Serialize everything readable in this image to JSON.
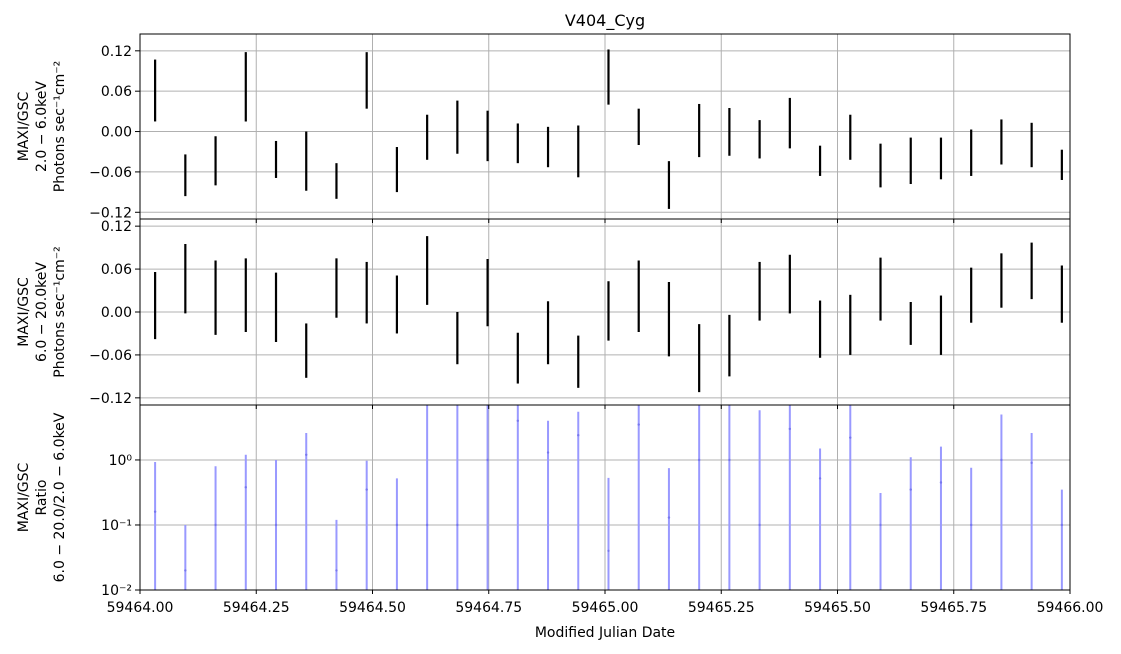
{
  "chart_data": {
    "type": "scatter",
    "title": "V404_Cyg",
    "xlabel": "Modified Julian Date",
    "xlim": [
      59464.0,
      59466.0
    ],
    "x_ticks": [
      "59464.00",
      "59464.25",
      "59464.50",
      "59464.75",
      "59465.00",
      "59465.25",
      "59465.50",
      "59465.75",
      "59466.00"
    ],
    "grid": true,
    "panels": [
      {
        "id": "soft",
        "ylabel_lines": [
          "MAXI/GSC",
          "2.0 − 6.0keV",
          "Photons sec⁻¹cm⁻²"
        ],
        "ylim": [
          -0.13,
          0.145
        ],
        "yscale": "linear",
        "y_ticks": [
          {
            "value": 0.12,
            "label": "0.12"
          },
          {
            "value": 0.06,
            "label": "0.06"
          },
          {
            "value": 0.0,
            "label": "0.00"
          },
          {
            "value": -0.06,
            "label": "−0.06"
          },
          {
            "value": -0.12,
            "label": "−0.12"
          }
        ],
        "color": "#000000",
        "points": [
          {
            "x": 59464.0325,
            "low": 0.015,
            "high": 0.107
          },
          {
            "x": 59464.0975,
            "low": -0.096,
            "high": -0.034
          },
          {
            "x": 59464.1625,
            "low": -0.08,
            "high": -0.007
          },
          {
            "x": 59464.2275,
            "low": 0.015,
            "high": 0.118
          },
          {
            "x": 59464.2925,
            "low": -0.069,
            "high": -0.014
          },
          {
            "x": 59464.3575,
            "low": -0.088,
            "high": 0.0
          },
          {
            "x": 59464.4225,
            "low": -0.1,
            "high": -0.047
          },
          {
            "x": 59464.4875,
            "low": 0.034,
            "high": 0.118
          },
          {
            "x": 59464.5525,
            "low": -0.09,
            "high": -0.023
          },
          {
            "x": 59464.6175,
            "low": -0.042,
            "high": 0.025
          },
          {
            "x": 59464.6825,
            "low": -0.033,
            "high": 0.046
          },
          {
            "x": 59464.7475,
            "low": -0.044,
            "high": 0.031
          },
          {
            "x": 59464.8125,
            "low": -0.047,
            "high": 0.012
          },
          {
            "x": 59464.8775,
            "low": -0.053,
            "high": 0.007
          },
          {
            "x": 59464.9425,
            "low": -0.068,
            "high": 0.009
          },
          {
            "x": 59465.0075,
            "low": 0.04,
            "high": 0.122
          },
          {
            "x": 59465.0725,
            "low": -0.02,
            "high": 0.034
          },
          {
            "x": 59465.1375,
            "low": -0.115,
            "high": -0.044
          },
          {
            "x": 59465.2025,
            "low": -0.038,
            "high": 0.041
          },
          {
            "x": 59465.2675,
            "low": -0.036,
            "high": 0.035
          },
          {
            "x": 59465.3325,
            "low": -0.04,
            "high": 0.017
          },
          {
            "x": 59465.3975,
            "low": -0.025,
            "high": 0.05
          },
          {
            "x": 59465.4625,
            "low": -0.066,
            "high": -0.021
          },
          {
            "x": 59465.5275,
            "low": -0.042,
            "high": 0.025
          },
          {
            "x": 59465.5925,
            "low": -0.083,
            "high": -0.018
          },
          {
            "x": 59465.6575,
            "low": -0.078,
            "high": -0.009
          },
          {
            "x": 59465.7225,
            "low": -0.071,
            "high": -0.009
          },
          {
            "x": 59465.7875,
            "low": -0.066,
            "high": 0.003
          },
          {
            "x": 59465.8525,
            "low": -0.049,
            "high": 0.018
          },
          {
            "x": 59465.9175,
            "low": -0.053,
            "high": 0.013
          },
          {
            "x": 59465.9825,
            "low": -0.072,
            "high": -0.027
          }
        ]
      },
      {
        "id": "hard",
        "ylabel_lines": [
          "MAXI/GSC",
          "6.0 − 20.0keV",
          "Photons sec⁻¹cm⁻²"
        ],
        "ylim": [
          -0.13,
          0.13
        ],
        "yscale": "linear",
        "y_ticks": [
          {
            "value": 0.12,
            "label": "0.12"
          },
          {
            "value": 0.06,
            "label": "0.06"
          },
          {
            "value": 0.0,
            "label": "0.00"
          },
          {
            "value": -0.06,
            "label": "−0.06"
          },
          {
            "value": -0.12,
            "label": "−0.12"
          }
        ],
        "color": "#000000",
        "points": [
          {
            "x": 59464.0325,
            "low": -0.038,
            "high": 0.056
          },
          {
            "x": 59464.0975,
            "low": -0.002,
            "high": 0.095
          },
          {
            "x": 59464.1625,
            "low": -0.032,
            "high": 0.072
          },
          {
            "x": 59464.2275,
            "low": -0.028,
            "high": 0.075
          },
          {
            "x": 59464.2925,
            "low": -0.042,
            "high": 0.055
          },
          {
            "x": 59464.3575,
            "low": -0.092,
            "high": -0.016
          },
          {
            "x": 59464.4225,
            "low": -0.008,
            "high": 0.075
          },
          {
            "x": 59464.4875,
            "low": -0.016,
            "high": 0.07
          },
          {
            "x": 59464.5525,
            "low": -0.03,
            "high": 0.051
          },
          {
            "x": 59464.6175,
            "low": 0.01,
            "high": 0.106
          },
          {
            "x": 59464.6825,
            "low": -0.073,
            "high": 0.0
          },
          {
            "x": 59464.7475,
            "low": -0.02,
            "high": 0.074
          },
          {
            "x": 59464.8125,
            "low": -0.1,
            "high": -0.029
          },
          {
            "x": 59464.8775,
            "low": -0.073,
            "high": 0.015
          },
          {
            "x": 59464.9425,
            "low": -0.106,
            "high": -0.033
          },
          {
            "x": 59465.0075,
            "low": -0.04,
            "high": 0.043
          },
          {
            "x": 59465.0725,
            "low": -0.028,
            "high": 0.072
          },
          {
            "x": 59465.1375,
            "low": -0.062,
            "high": 0.042
          },
          {
            "x": 59465.2025,
            "low": -0.112,
            "high": -0.017
          },
          {
            "x": 59465.2675,
            "low": -0.09,
            "high": -0.004
          },
          {
            "x": 59465.3325,
            "low": -0.012,
            "high": 0.07
          },
          {
            "x": 59465.3975,
            "low": -0.002,
            "high": 0.08
          },
          {
            "x": 59465.4625,
            "low": -0.064,
            "high": 0.016
          },
          {
            "x": 59465.5275,
            "low": -0.06,
            "high": 0.024
          },
          {
            "x": 59465.5925,
            "low": -0.012,
            "high": 0.076
          },
          {
            "x": 59465.6575,
            "low": -0.046,
            "high": 0.014
          },
          {
            "x": 59465.7225,
            "low": -0.06,
            "high": 0.023
          },
          {
            "x": 59465.7875,
            "low": -0.015,
            "high": 0.062
          },
          {
            "x": 59465.8525,
            "low": 0.006,
            "high": 0.082
          },
          {
            "x": 59465.9175,
            "low": 0.018,
            "high": 0.097
          },
          {
            "x": 59465.9825,
            "low": -0.015,
            "high": 0.065
          }
        ]
      },
      {
        "id": "ratio",
        "ylabel_lines": [
          "MAXI/GSC",
          "Ratio",
          "6.0 − 20.0/2.0 − 6.0keV"
        ],
        "ylim": [
          0.01,
          7.0
        ],
        "yscale": "log",
        "y_ticks": [
          {
            "value": 1.0,
            "label": "10⁰"
          },
          {
            "value": 0.1,
            "label": "10⁻¹"
          },
          {
            "value": 0.01,
            "label": "10⁻²"
          }
        ],
        "color": "#9999ff",
        "points": [
          {
            "x": 59464.0325,
            "value": 0.16,
            "low": 0.01,
            "high": 0.93
          },
          {
            "x": 59464.0975,
            "value": 0.02,
            "low": 0.01,
            "high": 0.1
          },
          {
            "x": 59464.1625,
            "value": 0.1,
            "low": 0.01,
            "high": 0.8
          },
          {
            "x": 59464.2275,
            "value": 0.38,
            "low": 0.01,
            "high": 1.2
          },
          {
            "x": 59464.2925,
            "value": 0.1,
            "low": 0.01,
            "high": 1.0
          },
          {
            "x": 59464.3575,
            "value": 1.2,
            "low": 0.01,
            "high": 2.6
          },
          {
            "x": 59464.4225,
            "value": 0.02,
            "low": 0.01,
            "high": 0.12
          },
          {
            "x": 59464.4875,
            "value": 0.35,
            "low": 0.01,
            "high": 0.97
          },
          {
            "x": 59464.5525,
            "value": 0.1,
            "low": 0.01,
            "high": 0.52
          },
          {
            "x": 59464.6175,
            "value": 0.1,
            "low": 0.01,
            "high": 7.0
          },
          {
            "x": 59464.6825,
            "value": 0.1,
            "low": 0.01,
            "high": 7.0
          },
          {
            "x": 59464.7475,
            "value": 1.0,
            "low": 0.01,
            "high": 7.0
          },
          {
            "x": 59464.8125,
            "value": 4.0,
            "low": 0.01,
            "high": 7.0
          },
          {
            "x": 59464.8775,
            "value": 1.3,
            "low": 0.01,
            "high": 4.0
          },
          {
            "x": 59464.9425,
            "value": 2.4,
            "low": 0.01,
            "high": 5.5
          },
          {
            "x": 59465.0075,
            "value": 0.04,
            "low": 0.01,
            "high": 0.53
          },
          {
            "x": 59465.0725,
            "value": 3.5,
            "low": 0.01,
            "high": 7.0
          },
          {
            "x": 59465.1375,
            "value": 0.13,
            "low": 0.01,
            "high": 0.75
          },
          {
            "x": 59465.2025,
            "value": 1.0,
            "low": 0.01,
            "high": 7.0
          },
          {
            "x": 59465.2675,
            "value": 1.0,
            "low": 0.01,
            "high": 7.0
          },
          {
            "x": 59465.3325,
            "value": 0.1,
            "low": 0.01,
            "high": 5.8
          },
          {
            "x": 59465.3975,
            "value": 3.0,
            "low": 0.01,
            "high": 7.0
          },
          {
            "x": 59465.4625,
            "value": 0.52,
            "low": 0.01,
            "high": 1.5
          },
          {
            "x": 59465.5275,
            "value": 2.2,
            "low": 0.01,
            "high": 7.0
          },
          {
            "x": 59465.5925,
            "value": 0.1,
            "low": 0.01,
            "high": 0.31
          },
          {
            "x": 59465.6575,
            "value": 0.35,
            "low": 0.01,
            "high": 1.1
          },
          {
            "x": 59465.7225,
            "value": 0.45,
            "low": 0.01,
            "high": 1.6
          },
          {
            "x": 59465.7875,
            "value": 0.1,
            "low": 0.01,
            "high": 0.76
          },
          {
            "x": 59465.8525,
            "value": 1.0,
            "low": 0.01,
            "high": 5.0
          },
          {
            "x": 59465.9175,
            "value": 0.9,
            "low": 0.01,
            "high": 2.6
          },
          {
            "x": 59465.9825,
            "value": 0.1,
            "low": 0.01,
            "high": 0.35
          }
        ]
      }
    ]
  }
}
